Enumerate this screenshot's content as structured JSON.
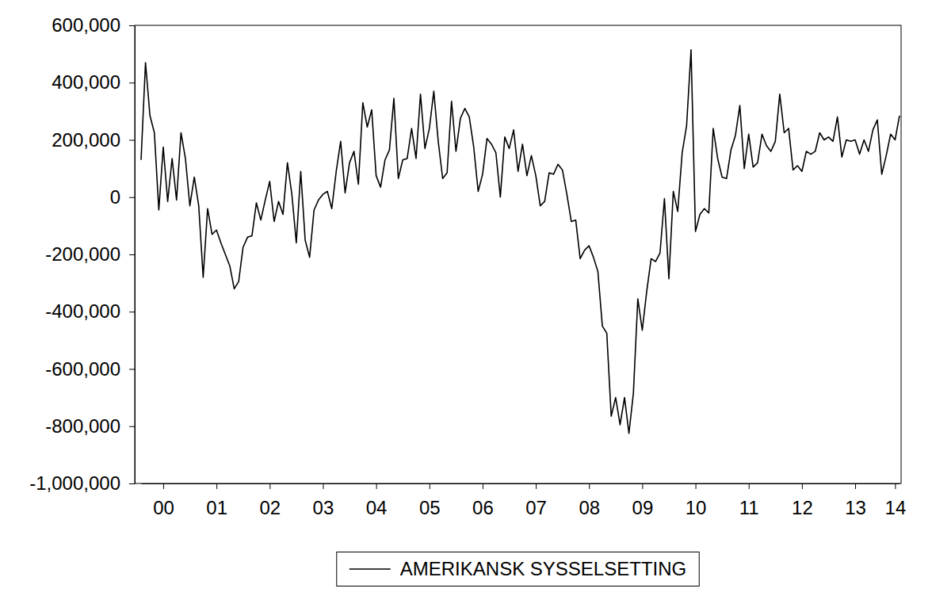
{
  "chart_data": {
    "type": "line",
    "categories": [
      null,
      null,
      null,
      null,
      null,
      "00",
      null,
      null,
      null,
      null,
      null,
      null,
      null,
      null,
      null,
      null,
      null,
      "01",
      null,
      null,
      null,
      null,
      null,
      null,
      null,
      null,
      null,
      null,
      null,
      "02",
      null,
      null,
      null,
      null,
      null,
      null,
      null,
      null,
      null,
      null,
      null,
      "03",
      null,
      null,
      null,
      null,
      null,
      null,
      null,
      null,
      null,
      null,
      null,
      "04",
      null,
      null,
      null,
      null,
      null,
      null,
      null,
      null,
      null,
      null,
      null,
      "05",
      null,
      null,
      null,
      null,
      null,
      null,
      null,
      null,
      null,
      null,
      null,
      "06",
      null,
      null,
      null,
      null,
      null,
      null,
      null,
      null,
      null,
      null,
      null,
      "07",
      null,
      null,
      null,
      null,
      null,
      null,
      null,
      null,
      null,
      null,
      null,
      "08",
      null,
      null,
      null,
      null,
      null,
      null,
      null,
      null,
      null,
      null,
      null,
      "09",
      null,
      null,
      null,
      null,
      null,
      null,
      null,
      null,
      null,
      null,
      null,
      "10",
      null,
      null,
      null,
      null,
      null,
      null,
      null,
      null,
      null,
      null,
      null,
      "11",
      null,
      null,
      null,
      null,
      null,
      null,
      null,
      null,
      null,
      null,
      null,
      "12",
      null,
      null,
      null,
      null,
      null,
      null,
      null,
      null,
      null,
      null,
      null,
      "13",
      null,
      null,
      null,
      null,
      null,
      null,
      null,
      null,
      "14",
      null
    ],
    "series": [
      {
        "name": "AMERIKANSK SYSSELSETTING",
        "color": "#000000",
        "values": [
          130000,
          470000,
          285000,
          225000,
          -45000,
          175000,
          -15000,
          135000,
          -10000,
          225000,
          135000,
          -30000,
          70000,
          -30000,
          -280000,
          -40000,
          -130000,
          -115000,
          -160000,
          -200000,
          -240000,
          -320000,
          -295000,
          -175000,
          -140000,
          -135000,
          -20000,
          -80000,
          -10000,
          55000,
          -85000,
          -15000,
          -60000,
          120000,
          10000,
          -160000,
          90000,
          -150000,
          -210000,
          -45000,
          -10000,
          10000,
          20000,
          -40000,
          90000,
          195000,
          15000,
          120000,
          160000,
          45000,
          330000,
          245000,
          305000,
          75000,
          35000,
          130000,
          165000,
          345000,
          65000,
          130000,
          135000,
          240000,
          135000,
          360000,
          170000,
          240000,
          370000,
          195000,
          65000,
          85000,
          335000,
          160000,
          275000,
          310000,
          280000,
          175000,
          20000,
          80000,
          205000,
          185000,
          155000,
          0,
          210000,
          170000,
          235000,
          90000,
          185000,
          75000,
          145000,
          75000,
          -30000,
          -15000,
          85000,
          80000,
          115000,
          95000,
          10000,
          -85000,
          -80000,
          -215000,
          -185000,
          -170000,
          -210000,
          -260000,
          -450000,
          -475000,
          -765000,
          -700000,
          -795000,
          -700000,
          -825000,
          -685000,
          -355000,
          -465000,
          -330000,
          -215000,
          -225000,
          -195000,
          -5000,
          -285000,
          20000,
          -50000,
          155000,
          250000,
          515000,
          -120000,
          -60000,
          -40000,
          -55000,
          240000,
          135000,
          70000,
          65000,
          165000,
          215000,
          320000,
          100000,
          220000,
          105000,
          120000,
          220000,
          180000,
          160000,
          195000,
          360000,
          225000,
          240000,
          95000,
          110000,
          90000,
          160000,
          150000,
          160000,
          225000,
          200000,
          210000,
          195000,
          280000,
          140000,
          200000,
          195000,
          200000,
          150000,
          200000,
          160000,
          235000,
          270000,
          80000,
          145000,
          220000,
          200000,
          285000
        ]
      }
    ],
    "ylim": [
      -1000000,
      600000
    ],
    "yticks": [
      {
        "value": -1000000,
        "label": "-1,000,000"
      },
      {
        "value": -800000,
        "label": "-800,000"
      },
      {
        "value": -600000,
        "label": "-600,000"
      },
      {
        "value": -400000,
        "label": "-400,000"
      },
      {
        "value": -200000,
        "label": "-200,000"
      },
      0,
      {
        "value": 200000,
        "label": "200,000"
      },
      {
        "value": 400000,
        "label": "400,000"
      },
      {
        "value": 600000,
        "label": "600,000"
      }
    ],
    "grid": false,
    "legend": "bottom"
  }
}
